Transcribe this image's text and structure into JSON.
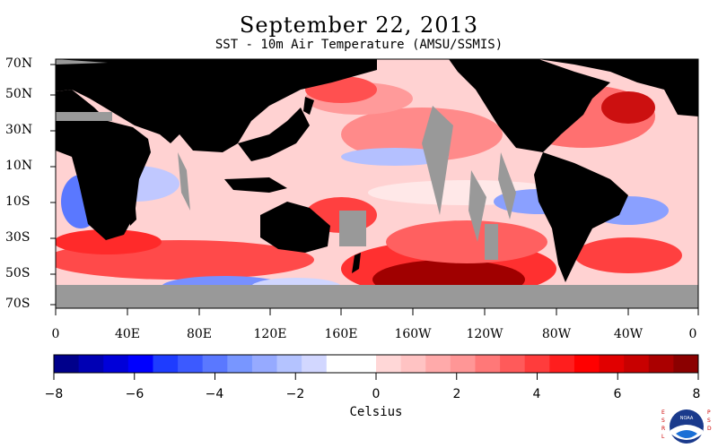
{
  "title": "September 22, 2013",
  "subtitle": "SST - 10m Air Temperature (AMSU/SSMIS)",
  "lat_labels": [
    "70N",
    "50N",
    "30N",
    "10N",
    "10S",
    "30S",
    "50S",
    "70S"
  ],
  "lon_labels": [
    "0",
    "40E",
    "80E",
    "120E",
    "160E",
    "160W",
    "120W",
    "80W",
    "40W",
    "0"
  ],
  "colorbar": {
    "ticks": [
      "−8",
      "−6",
      "−4",
      "−2",
      "0",
      "2",
      "4",
      "6",
      "8"
    ],
    "label": "Celsius",
    "range": [
      -8,
      8
    ],
    "colors": [
      "#00008b",
      "#0000b4",
      "#0000d9",
      "#0000ff",
      "#1e3cff",
      "#3c5aff",
      "#5a78ff",
      "#7896ff",
      "#96aaff",
      "#b4c3ff",
      "#d2d7ff",
      "#ffffff",
      "#ffffff",
      "#ffd7d7",
      "#ffc3c3",
      "#ffaaaa",
      "#ff9696",
      "#ff7878",
      "#ff5a5a",
      "#ff3c3c",
      "#ff1e1e",
      "#ff0000",
      "#e10000",
      "#c80000",
      "#aa0000",
      "#8b0000"
    ]
  },
  "colors": {
    "land": "#000000",
    "missing": "#999999"
  },
  "logo_text": {
    "left": "ESRL",
    "right": "PSD",
    "center": "NOAA"
  }
}
